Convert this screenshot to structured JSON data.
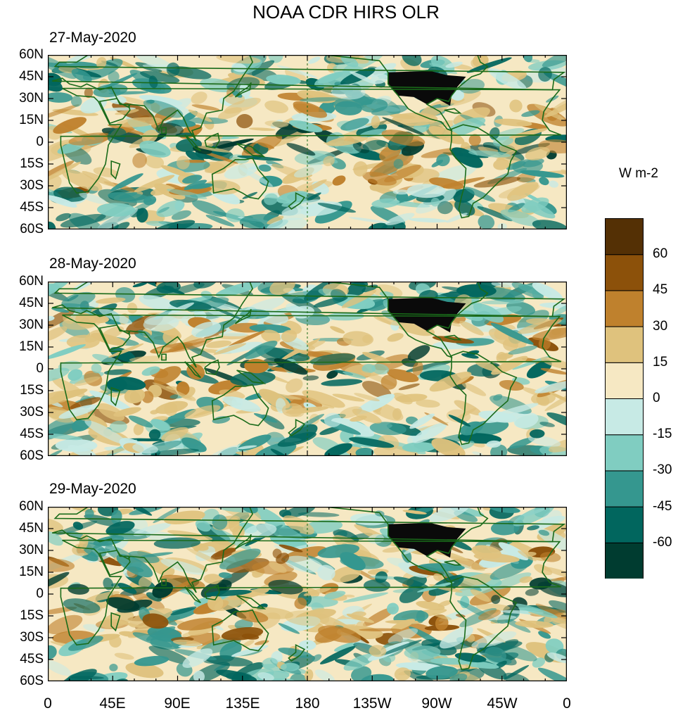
{
  "title": "NOAA CDR HIRS OLR",
  "units": "W m-2",
  "panels": [
    {
      "date": "27-May-2020"
    },
    {
      "date": "28-May-2020"
    },
    {
      "date": "29-May-2020"
    }
  ],
  "lat_labels": [
    "60N",
    "45N",
    "30N",
    "15N",
    "0",
    "15S",
    "30S",
    "45S",
    "60S"
  ],
  "lon_labels": [
    "0",
    "45E",
    "90E",
    "135E",
    "180",
    "135W",
    "90W",
    "45W",
    "0"
  ],
  "colorbar": {
    "colors": [
      "#003c30",
      "#01665e",
      "#35978f",
      "#80cdc1",
      "#c7eae5",
      "#f6e8c3",
      "#dfc27d",
      "#bf812d",
      "#8c510a",
      "#543005"
    ],
    "labels": [
      "-60",
      "-45",
      "-30",
      "-15",
      "0",
      "15",
      "30",
      "45",
      "60"
    ]
  },
  "coastline_color": "#1a6b1a"
}
